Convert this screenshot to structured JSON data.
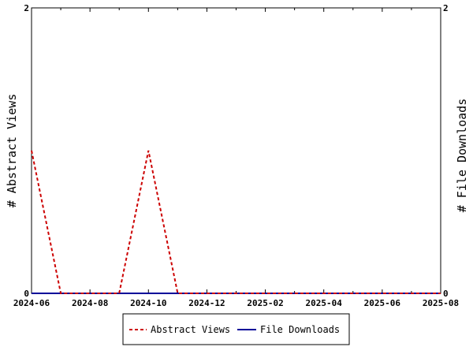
{
  "chart_data": {
    "type": "line",
    "title": "",
    "x": [
      "2024-06",
      "2024-07",
      "2024-08",
      "2024-09",
      "2024-10",
      "2024-11",
      "2024-12",
      "2025-01",
      "2025-02",
      "2025-03",
      "2025-04",
      "2025-05",
      "2025-06",
      "2025-07",
      "2025-08"
    ],
    "xticks": [
      "2024-06",
      "2024-08",
      "2024-10",
      "2024-12",
      "2025-02",
      "2025-04",
      "2025-06",
      "2025-08"
    ],
    "ylabel_left": "# Abstract Views",
    "ylabel_right": "# File Downloads",
    "ylim_left": [
      0,
      2
    ],
    "ylim_right": [
      0,
      2
    ],
    "yticks_left": [
      "0",
      "2"
    ],
    "yticks_right": [
      "0",
      "2"
    ],
    "grid": false,
    "legend_position": "bottom-center",
    "series": [
      {
        "name": "Abstract Views",
        "axis": "left",
        "color": "#cc0000",
        "dash": "dashed",
        "values": [
          1,
          0,
          0,
          0,
          1,
          0,
          0,
          0,
          0,
          0,
          0,
          0,
          0,
          0,
          0
        ]
      },
      {
        "name": "File Downloads",
        "axis": "right",
        "color": "#000099",
        "dash": "solid",
        "values": [
          0,
          0,
          0,
          0,
          0,
          0,
          0,
          0,
          0,
          0,
          0,
          0,
          0,
          0,
          0
        ]
      }
    ]
  }
}
